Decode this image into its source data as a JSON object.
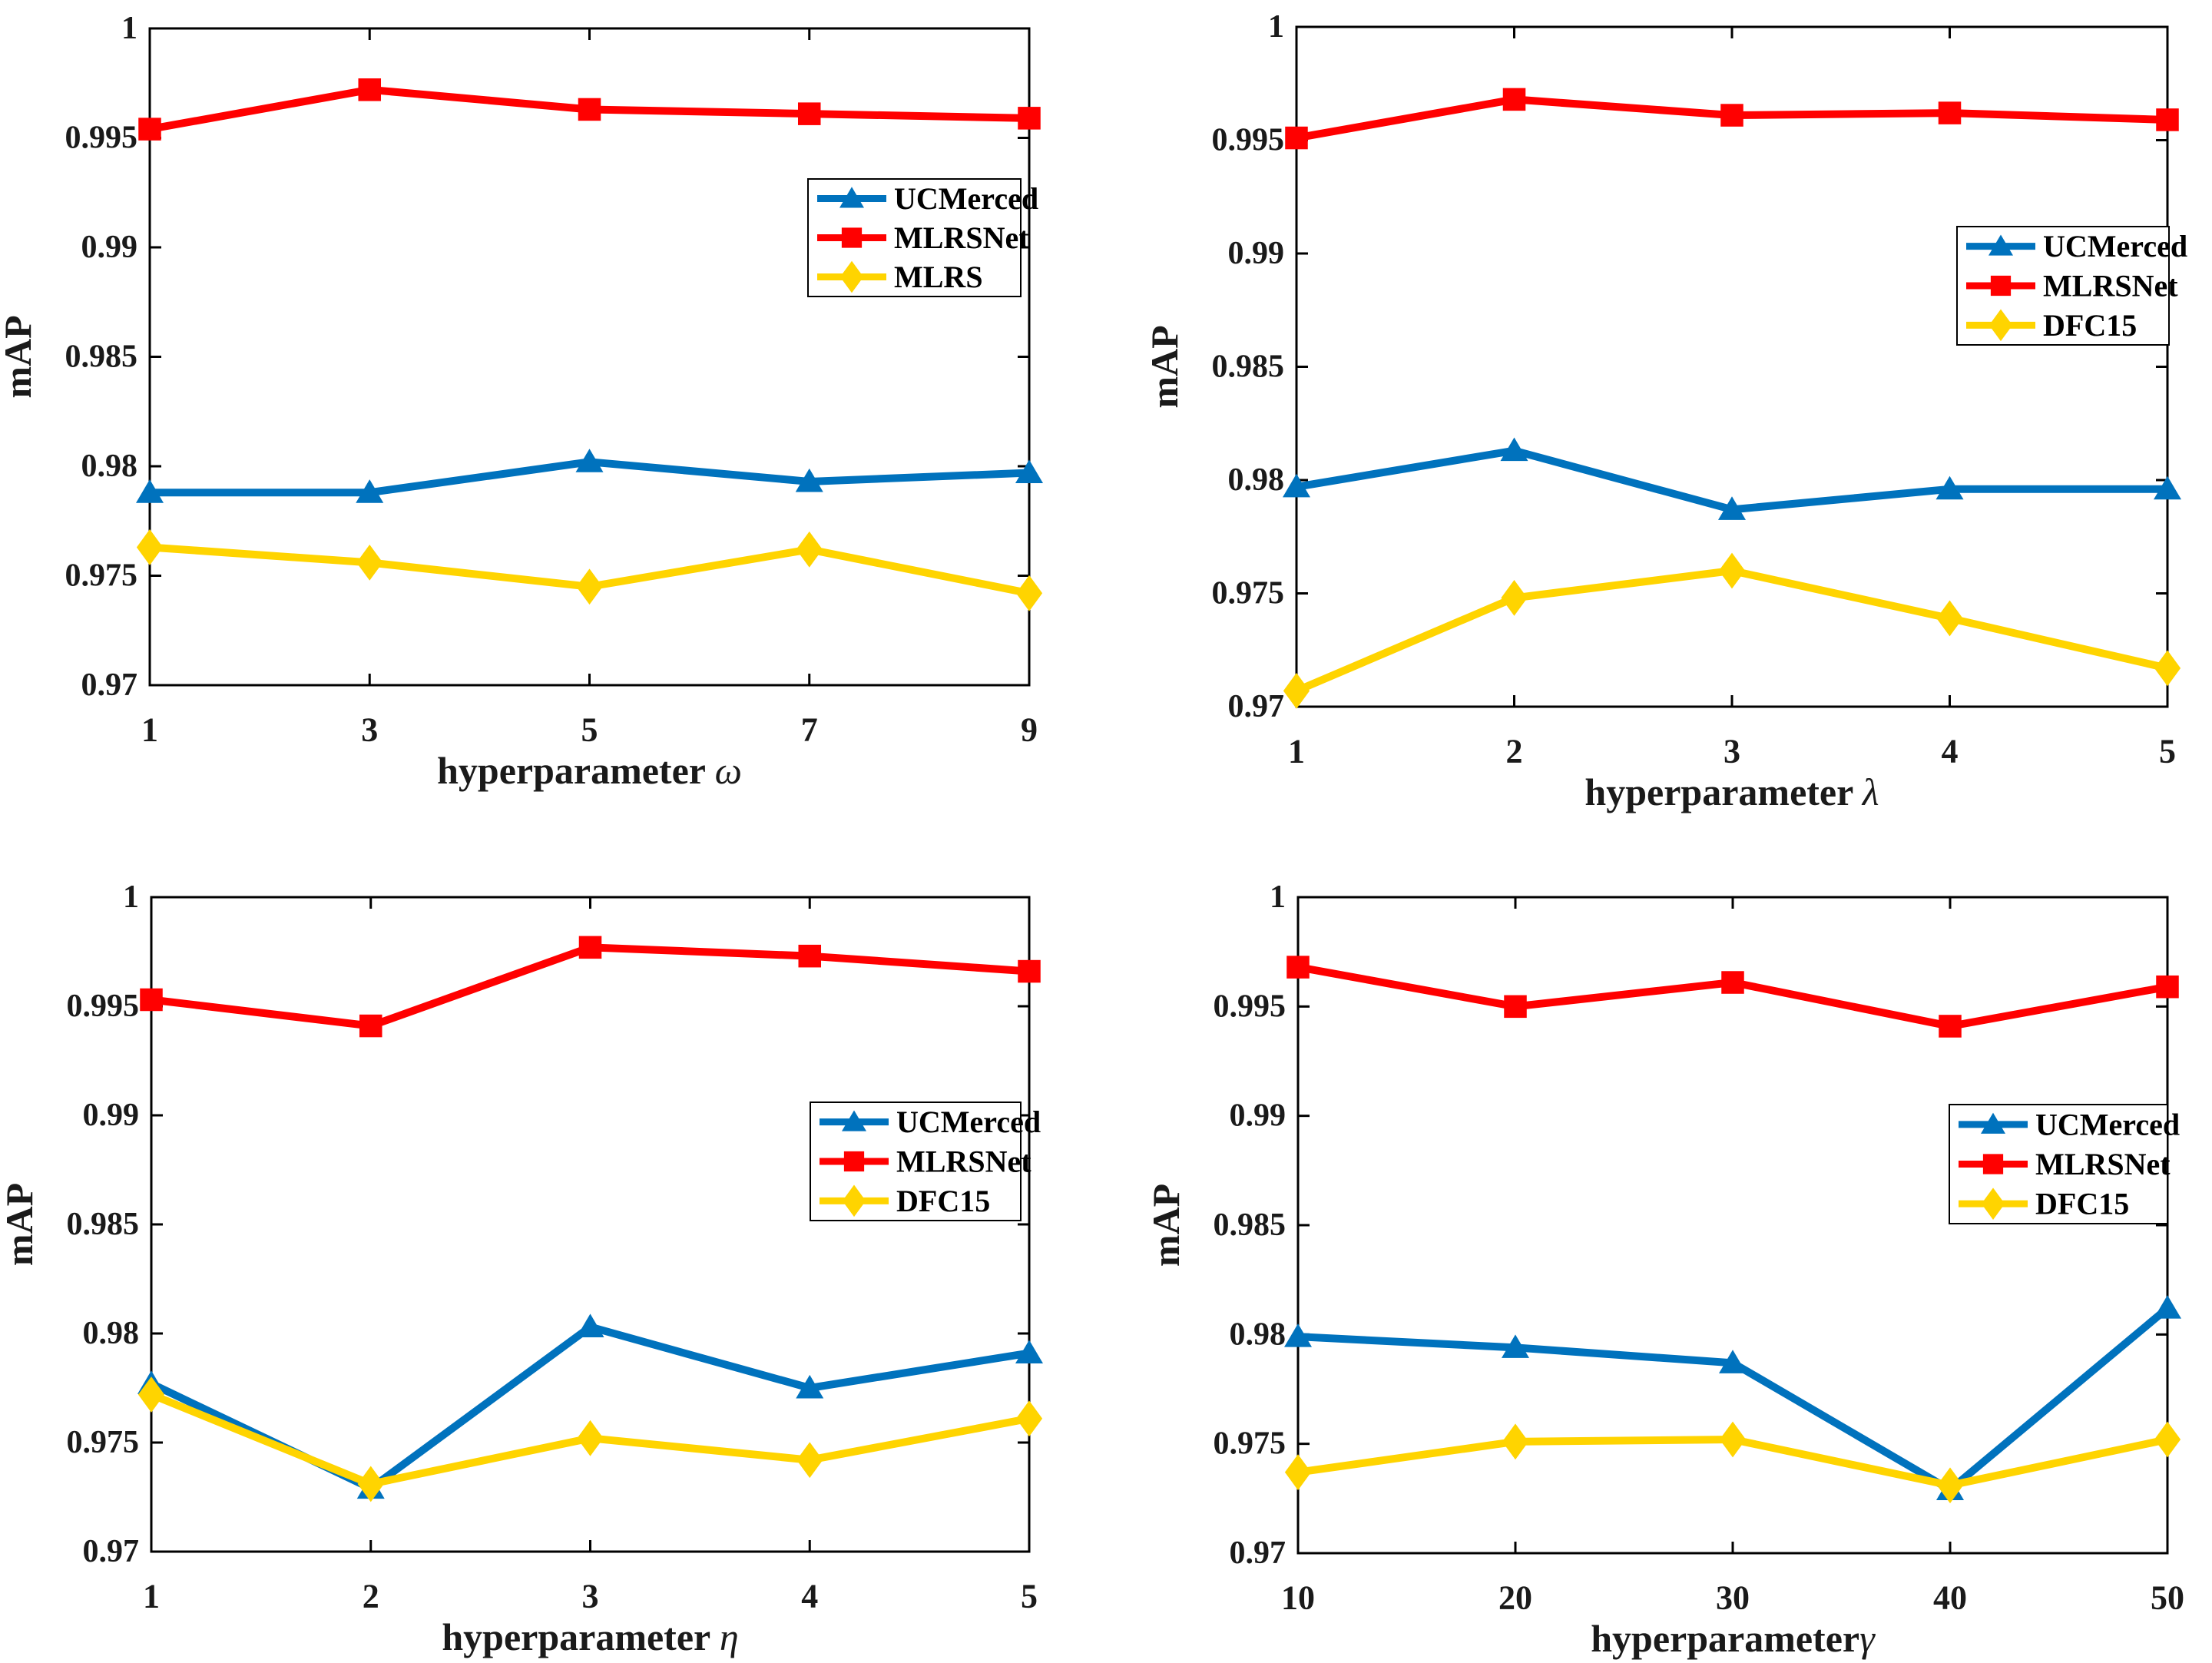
{
  "figure": {
    "background_color": "#ffffff",
    "axis_color": "#000000",
    "ylabel": "mAP"
  },
  "chart_data": [
    {
      "id": "hyperparameter-omega",
      "type": "line",
      "xlabel_text": "hyperparameter ",
      "xlabel_symbol": "ω",
      "ylabel": "mAP",
      "x": [
        1,
        3,
        5,
        7,
        9
      ],
      "xtick_labels": [
        "1",
        "3",
        "5",
        "7",
        "9"
      ],
      "ylim": [
        0.97,
        1.0
      ],
      "yticks": [
        0.97,
        0.975,
        0.98,
        0.985,
        0.99,
        0.995,
        1.0
      ],
      "ytick_labels": [
        "0.97",
        "0.975",
        "0.98",
        "0.985",
        "0.99",
        "0.995",
        "1"
      ],
      "grid": false,
      "legend_position": "upper-right-inside",
      "series": [
        {
          "name": "UCMerced",
          "marker": "triangle",
          "color": "#0072BD",
          "values": [
            0.9788,
            0.9788,
            0.9802,
            0.9793,
            0.9797
          ]
        },
        {
          "name": "MLRSNet",
          "marker": "square",
          "color": "#FF0000",
          "values": [
            0.9954,
            0.9972,
            0.9963,
            0.9961,
            0.9959
          ]
        },
        {
          "name": "MLRS",
          "marker": "diamond",
          "color": "#FFD400",
          "values": [
            0.9763,
            0.9756,
            0.9745,
            0.9762,
            0.9742
          ]
        }
      ]
    },
    {
      "id": "hyperparameter-lambda",
      "type": "line",
      "xlabel_text": "hyperparameter ",
      "xlabel_symbol": "λ",
      "ylabel": "mAP",
      "x": [
        1,
        2,
        3,
        4,
        5
      ],
      "xtick_labels": [
        "1",
        "2",
        "3",
        "4",
        "5"
      ],
      "ylim": [
        0.97,
        1.0
      ],
      "yticks": [
        0.97,
        0.975,
        0.98,
        0.985,
        0.99,
        0.995,
        1.0
      ],
      "ytick_labels": [
        "0.97",
        "0.975",
        "0.98",
        "0.985",
        "0.99",
        "0.995",
        "1"
      ],
      "grid": false,
      "legend_position": "middle-right-inside",
      "series": [
        {
          "name": "UCMerced",
          "marker": "triangle",
          "color": "#0072BD",
          "values": [
            0.9797,
            0.9813,
            0.9787,
            0.9796,
            0.9796
          ]
        },
        {
          "name": "MLRSNet",
          "marker": "square",
          "color": "#FF0000",
          "values": [
            0.9951,
            0.9968,
            0.9961,
            0.9962,
            0.9959
          ]
        },
        {
          "name": "DFC15",
          "marker": "diamond",
          "color": "#FFD400",
          "values": [
            0.9707,
            0.9748,
            0.976,
            0.9739,
            0.9717
          ]
        }
      ]
    },
    {
      "id": "hyperparameter-eta",
      "type": "line",
      "xlabel_text": "hyperparameter ",
      "xlabel_symbol": "η",
      "ylabel": "mAP",
      "x": [
        1,
        2,
        3,
        4,
        5
      ],
      "xtick_labels": [
        "1",
        "2",
        "3",
        "4",
        "5"
      ],
      "ylim": [
        0.97,
        1.0
      ],
      "yticks": [
        0.97,
        0.975,
        0.98,
        0.985,
        0.99,
        0.995,
        1.0
      ],
      "ytick_labels": [
        "0.97",
        "0.975",
        "0.98",
        "0.985",
        "0.99",
        "0.995",
        "1"
      ],
      "grid": false,
      "legend_position": "middle-right-inside",
      "series": [
        {
          "name": "UCMerced",
          "marker": "triangle",
          "color": "#0072BD",
          "values": [
            0.9777,
            0.9729,
            0.9803,
            0.9775,
            0.9791
          ]
        },
        {
          "name": "MLRSNet",
          "marker": "square",
          "color": "#FF0000",
          "values": [
            0.9953,
            0.9941,
            0.9977,
            0.9973,
            0.9966
          ]
        },
        {
          "name": "DFC15",
          "marker": "diamond",
          "color": "#FFD400",
          "values": [
            0.9772,
            0.9731,
            0.9752,
            0.9742,
            0.9761
          ]
        }
      ]
    },
    {
      "id": "hyperparameter-gamma",
      "type": "line",
      "xlabel_text": "hyperparameter",
      "xlabel_symbol": "γ",
      "ylabel": "mAP",
      "x": [
        10,
        20,
        30,
        40,
        50
      ],
      "xtick_labels": [
        "10",
        "20",
        "30",
        "40",
        "50"
      ],
      "ylim": [
        0.97,
        1.0
      ],
      "yticks": [
        0.97,
        0.975,
        0.98,
        0.985,
        0.99,
        0.995,
        1.0
      ],
      "ytick_labels": [
        "0.97",
        "0.975",
        "0.98",
        "0.985",
        "0.99",
        "0.995",
        "1"
      ],
      "grid": false,
      "legend_position": "middle-right-inside",
      "series": [
        {
          "name": "UCMerced",
          "marker": "triangle",
          "color": "#0072BD",
          "values": [
            0.9799,
            0.9794,
            0.9787,
            0.9729,
            0.9812
          ]
        },
        {
          "name": "MLRSNet",
          "marker": "square",
          "color": "#FF0000",
          "values": [
            0.9968,
            0.995,
            0.9961,
            0.9941,
            0.9959
          ]
        },
        {
          "name": "DFC15",
          "marker": "diamond",
          "color": "#FFD400",
          "values": [
            0.9737,
            0.9751,
            0.9752,
            0.9731,
            0.9752
          ]
        }
      ]
    }
  ]
}
